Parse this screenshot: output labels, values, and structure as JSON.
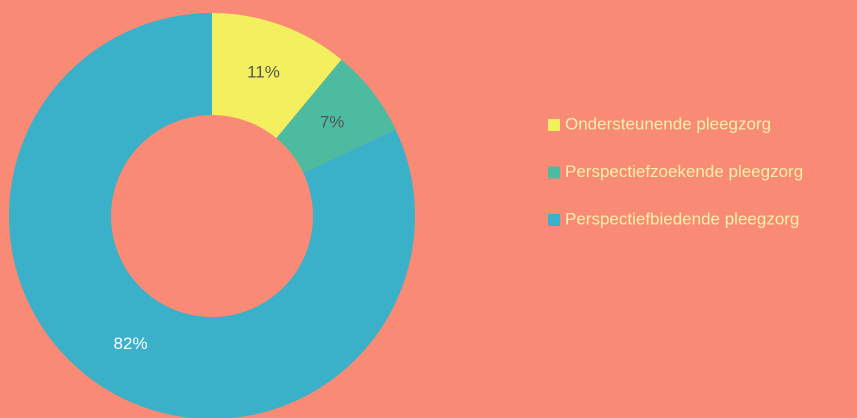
{
  "chart_data": {
    "type": "donut",
    "categories": [
      "Ondersteunende pleegzorg",
      "Perspectiefzoekende pleegzorg",
      "Perspectiefbiedende pleegzorg"
    ],
    "values": [
      11,
      7,
      82
    ],
    "value_labels": [
      "11%",
      "7%",
      "82%"
    ],
    "colors": [
      "#f4ef5e",
      "#4dbb9f",
      "#3ab1c8"
    ],
    "legend": "right"
  }
}
